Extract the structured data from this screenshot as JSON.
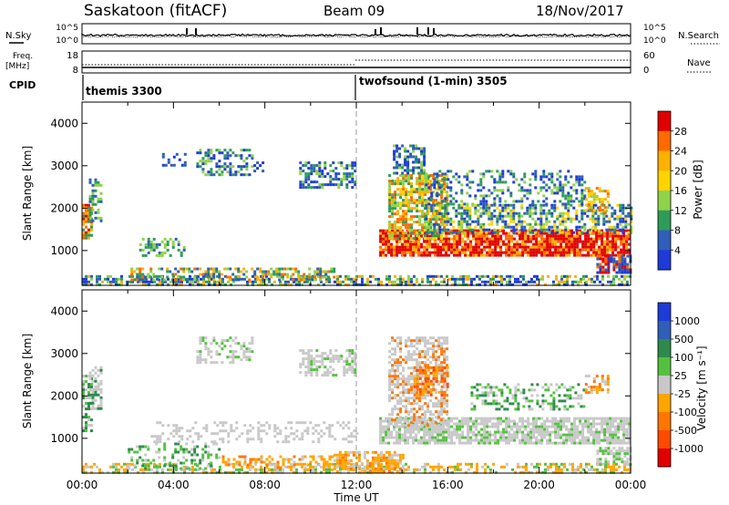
{
  "header": {
    "station": "Saskatoon (fitACF)",
    "beam": "Beam 09",
    "date": "18/Nov/2017"
  },
  "summary_panel": {
    "nsky_label": "N.Sky",
    "nsky_ticks": [
      "10^5",
      "10^0"
    ],
    "nsearch_label": "N.Search",
    "nsearch_ticks": [
      "10^5",
      "10^0"
    ],
    "freq_label_1": "Freq.",
    "freq_label_2": "[MHz]",
    "freq_ticks": [
      "18",
      "8"
    ],
    "nave_label": "Nave",
    "nave_ticks": [
      "60",
      "0"
    ],
    "cpid_label": "CPID",
    "cpid_1": "themis 3300",
    "cpid_2": "twofsound (1-min) 3505"
  },
  "chart_data": [
    {
      "type": "heatmap",
      "title": "",
      "xlabel": "",
      "ylabel": "Slant Range [km]",
      "xlim": [
        0,
        24
      ],
      "ylim": [
        180,
        4500
      ],
      "yticks": [
        "1000",
        "2000",
        "3000",
        "4000"
      ],
      "colorbar_label": "Power [dB]",
      "colorbar_ticks": [
        "28",
        "24",
        "20",
        "16",
        "12",
        "8",
        "4"
      ],
      "colorbar_colors": [
        "#e00000",
        "#ff6a00",
        "#ffb000",
        "#ffd400",
        "#8fd34a",
        "#2e9c58",
        "#2f5fb8",
        "#1e3bd8"
      ]
    },
    {
      "type": "heatmap",
      "title": "",
      "xlabel": "Time UT",
      "ylabel": "Slant Range [km]",
      "xlim": [
        0,
        24
      ],
      "ylim": [
        180,
        4500
      ],
      "xticks": [
        "00:00",
        "04:00",
        "08:00",
        "12:00",
        "16:00",
        "20:00",
        "00:00"
      ],
      "yticks": [
        "1000",
        "2000",
        "3000",
        "4000"
      ],
      "colorbar_label": "Velocity [m s⁻¹]",
      "colorbar_ticks": [
        "1000",
        "500",
        "100",
        "25",
        "-25",
        "-100",
        "-500",
        "-1000"
      ],
      "colorbar_colors": [
        "#1e3bd8",
        "#2f5fb8",
        "#2e8a4c",
        "#55c040",
        "#c8c8c8",
        "#ffa500",
        "#ff7700",
        "#ff4a00",
        "#e00000"
      ]
    }
  ]
}
